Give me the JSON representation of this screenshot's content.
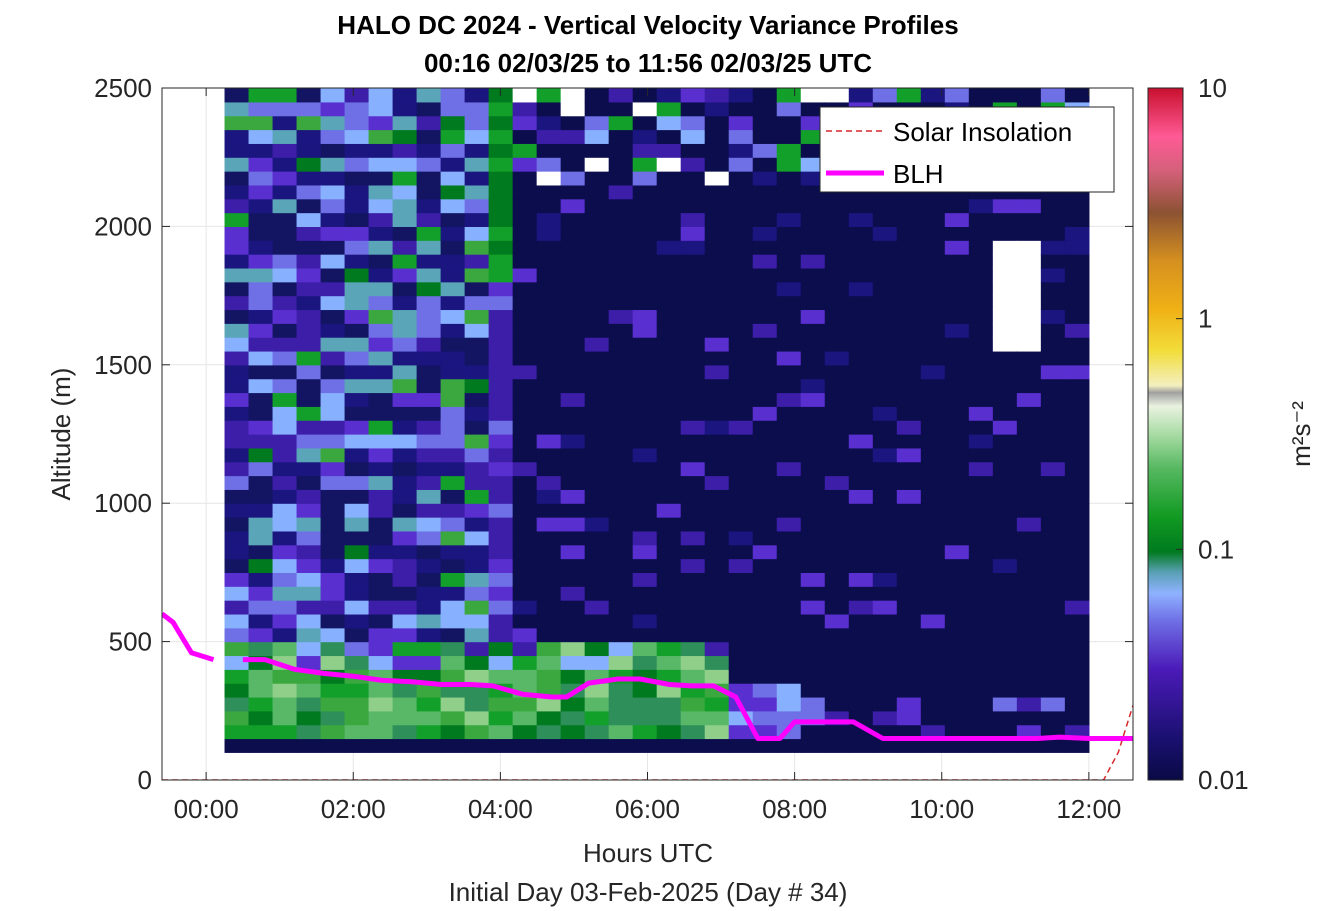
{
  "chart_data": {
    "type": "heatmap",
    "title_line1": "HALO DC 2024 - Vertical Velocity Variance Profiles",
    "title_line2": "00:16 02/03/25 to 11:56 02/03/25  UTC",
    "xlabel": "Hours UTC",
    "xlabel2": "Initial Day 03-Feb-2025 (Day # 34)",
    "ylabel": "Altitude (m)",
    "colorbar_label": "m²s⁻²",
    "xlim_hours": [
      -0.6,
      12.6
    ],
    "ylim": [
      0,
      2500
    ],
    "x_ticks": [
      {
        "value": 0,
        "label": "00:00"
      },
      {
        "value": 2,
        "label": "02:00"
      },
      {
        "value": 4,
        "label": "04:00"
      },
      {
        "value": 6,
        "label": "06:00"
      },
      {
        "value": 8,
        "label": "08:00"
      },
      {
        "value": 10,
        "label": "10:00"
      },
      {
        "value": 12,
        "label": "12:00"
      }
    ],
    "y_ticks": [
      {
        "value": 0,
        "label": "0"
      },
      {
        "value": 500,
        "label": "500"
      },
      {
        "value": 1000,
        "label": "1000"
      },
      {
        "value": 1500,
        "label": "1500"
      },
      {
        "value": 2000,
        "label": "2000"
      },
      {
        "value": 2500,
        "label": "2500"
      }
    ],
    "colorbar": {
      "scale": "log",
      "range": [
        0.01,
        10
      ],
      "ticks": [
        {
          "value": 0.01,
          "label": "0.01"
        },
        {
          "value": 0.1,
          "label": "0.1"
        },
        {
          "value": 1,
          "label": "1"
        },
        {
          "value": 10,
          "label": "10"
        }
      ]
    },
    "grid": true,
    "legend_position": "top-right",
    "series": [
      {
        "name": "Solar Insolation",
        "style": "dashed",
        "color": "#d62728",
        "x": [
          -0.6,
          12.2,
          12.4,
          12.6
        ],
        "y": [
          0,
          0,
          100,
          270
        ]
      },
      {
        "name": "BLH",
        "style": "solid",
        "color": "#ff00ff",
        "segments": [
          {
            "x": [
              -0.6,
              -0.45,
              -0.2,
              0.1
            ],
            "y": [
              600,
              570,
              460,
              435
            ]
          },
          {
            "x": [
              0.5,
              0.8,
              1.2,
              1.6,
              2.0,
              2.4,
              2.8,
              3.2,
              3.6,
              3.9,
              4.3,
              4.7,
              4.9,
              5.2,
              5.6,
              5.9,
              6.3,
              6.6,
              6.9,
              7.2,
              7.5,
              7.8,
              8.0,
              8.4,
              8.8,
              9.2,
              9.6,
              10.0,
              10.5,
              11.0,
              11.3,
              11.6,
              12.0,
              12.6
            ],
            "y": [
              435,
              435,
              400,
              385,
              375,
              360,
              355,
              345,
              345,
              340,
              310,
              300,
              300,
              350,
              365,
              365,
              345,
              340,
              340,
              300,
              150,
              150,
              210,
              210,
              210,
              150,
              150,
              150,
              150,
              150,
              150,
              155,
              150,
              150
            ]
          }
        ]
      }
    ],
    "heatmap": {
      "description": "variance field (m^2 s^-2), log scale 0.01-10",
      "x_range_hours": [
        0.25,
        12.0
      ],
      "y_range_m": [
        100,
        2500
      ],
      "levels": [
        "0.01",
        "0.02",
        "0.03",
        "0.05",
        "0.08",
        "0.1",
        "0.15",
        "0.2"
      ]
    }
  },
  "colors": {
    "blh": "#ff00ff",
    "solar": "#d62728",
    "background_field": "#0b0d4d"
  }
}
